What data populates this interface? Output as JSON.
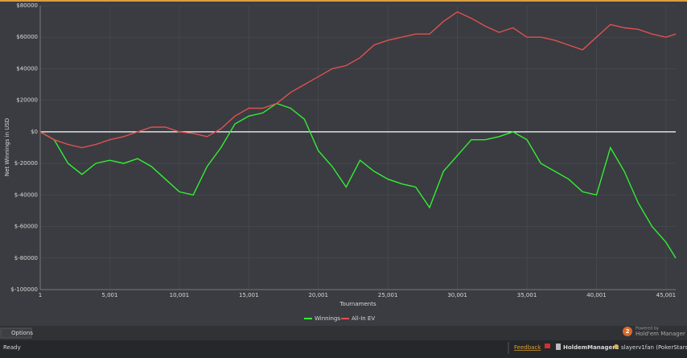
{
  "chart_data": {
    "type": "line",
    "y_label": "Net Winnings in USD",
    "x_label": "Tournaments",
    "x": [
      1,
      1001,
      2001,
      3001,
      4001,
      5001,
      6001,
      7001,
      8001,
      9001,
      10001,
      11001,
      12001,
      13001,
      14001,
      15001,
      16001,
      17001,
      18001,
      19001,
      20001,
      21001,
      22001,
      23001,
      24001,
      25001,
      26001,
      27001,
      28001,
      29001,
      30001,
      31001,
      32001,
      33001,
      34001,
      35001,
      36001,
      37001,
      38001,
      39001,
      40001,
      41001,
      42001,
      43001,
      44001,
      45001,
      45701
    ],
    "series": [
      {
        "name": "Winnings",
        "color": "#33ee33",
        "values": [
          0,
          -5000,
          -20000,
          -27000,
          -20000,
          -18000,
          -20000,
          -17000,
          -22000,
          -30000,
          -38000,
          -40000,
          -22000,
          -10000,
          5000,
          10000,
          12000,
          18000,
          15000,
          8000,
          -12000,
          -22000,
          -35000,
          -18000,
          -25000,
          -30000,
          -33000,
          -35000,
          -48000,
          -25000,
          -15000,
          -5000,
          -5000,
          -3000,
          0,
          -5000,
          -20000,
          -25000,
          -30000,
          -38000,
          -40000,
          -10000,
          -25000,
          -45000,
          -60000,
          -70000,
          -80000
        ]
      },
      {
        "name": "All-In EV",
        "color": "#e05050",
        "values": [
          0,
          -5000,
          -8000,
          -10000,
          -8000,
          -5000,
          -3000,
          0,
          3000,
          3000,
          0,
          -1000,
          -3000,
          2000,
          10000,
          15000,
          15000,
          18000,
          25000,
          30000,
          35000,
          40000,
          42000,
          47000,
          55000,
          58000,
          60000,
          62000,
          62000,
          70000,
          76000,
          72000,
          67000,
          63000,
          66000,
          60000,
          60000,
          58000,
          55000,
          52000,
          60000,
          68000,
          66000,
          65000,
          62000,
          60000,
          62000
        ]
      }
    ],
    "xlim": [
      1,
      45701
    ],
    "ylim": [
      -100000,
      80000
    ],
    "xticks": [
      1,
      {
        "value": 5001,
        "label": "5,001"
      },
      {
        "value": 10001,
        "label": "10,001"
      },
      {
        "value": 15001,
        "label": "15,001"
      },
      {
        "value": 20001,
        "label": "20,001"
      },
      {
        "value": 25001,
        "label": "25,001"
      },
      {
        "value": 30001,
        "label": "30,001"
      },
      {
        "value": 35001,
        "label": "35,001"
      },
      {
        "value": 40001,
        "label": "40,001"
      },
      {
        "value": 45001,
        "label": "45,001"
      }
    ],
    "yticks": [
      {
        "value": -100000,
        "label": "$-100000"
      },
      {
        "value": -80000,
        "label": "$-80000"
      },
      {
        "value": -60000,
        "label": "$-60000"
      },
      {
        "value": -40000,
        "label": "$-40000"
      },
      {
        "value": -20000,
        "label": "$-20000"
      },
      {
        "value": 0,
        "label": "$0"
      },
      {
        "value": 20000,
        "label": "$20000"
      },
      {
        "value": 40000,
        "label": "$40000"
      },
      {
        "value": 60000,
        "label": "$60000"
      },
      {
        "value": 80000,
        "label": "$80000"
      }
    ],
    "grid": true,
    "legend": "bottom"
  },
  "ui": {
    "options": "Options",
    "logo_number": "2",
    "powered_by": "Powered by",
    "brand": "Hold'em Manager",
    "status": "Ready",
    "feedback": "Feedback",
    "app": "HoldemManager2",
    "user": "slayerv1fan (PokerStars)"
  }
}
